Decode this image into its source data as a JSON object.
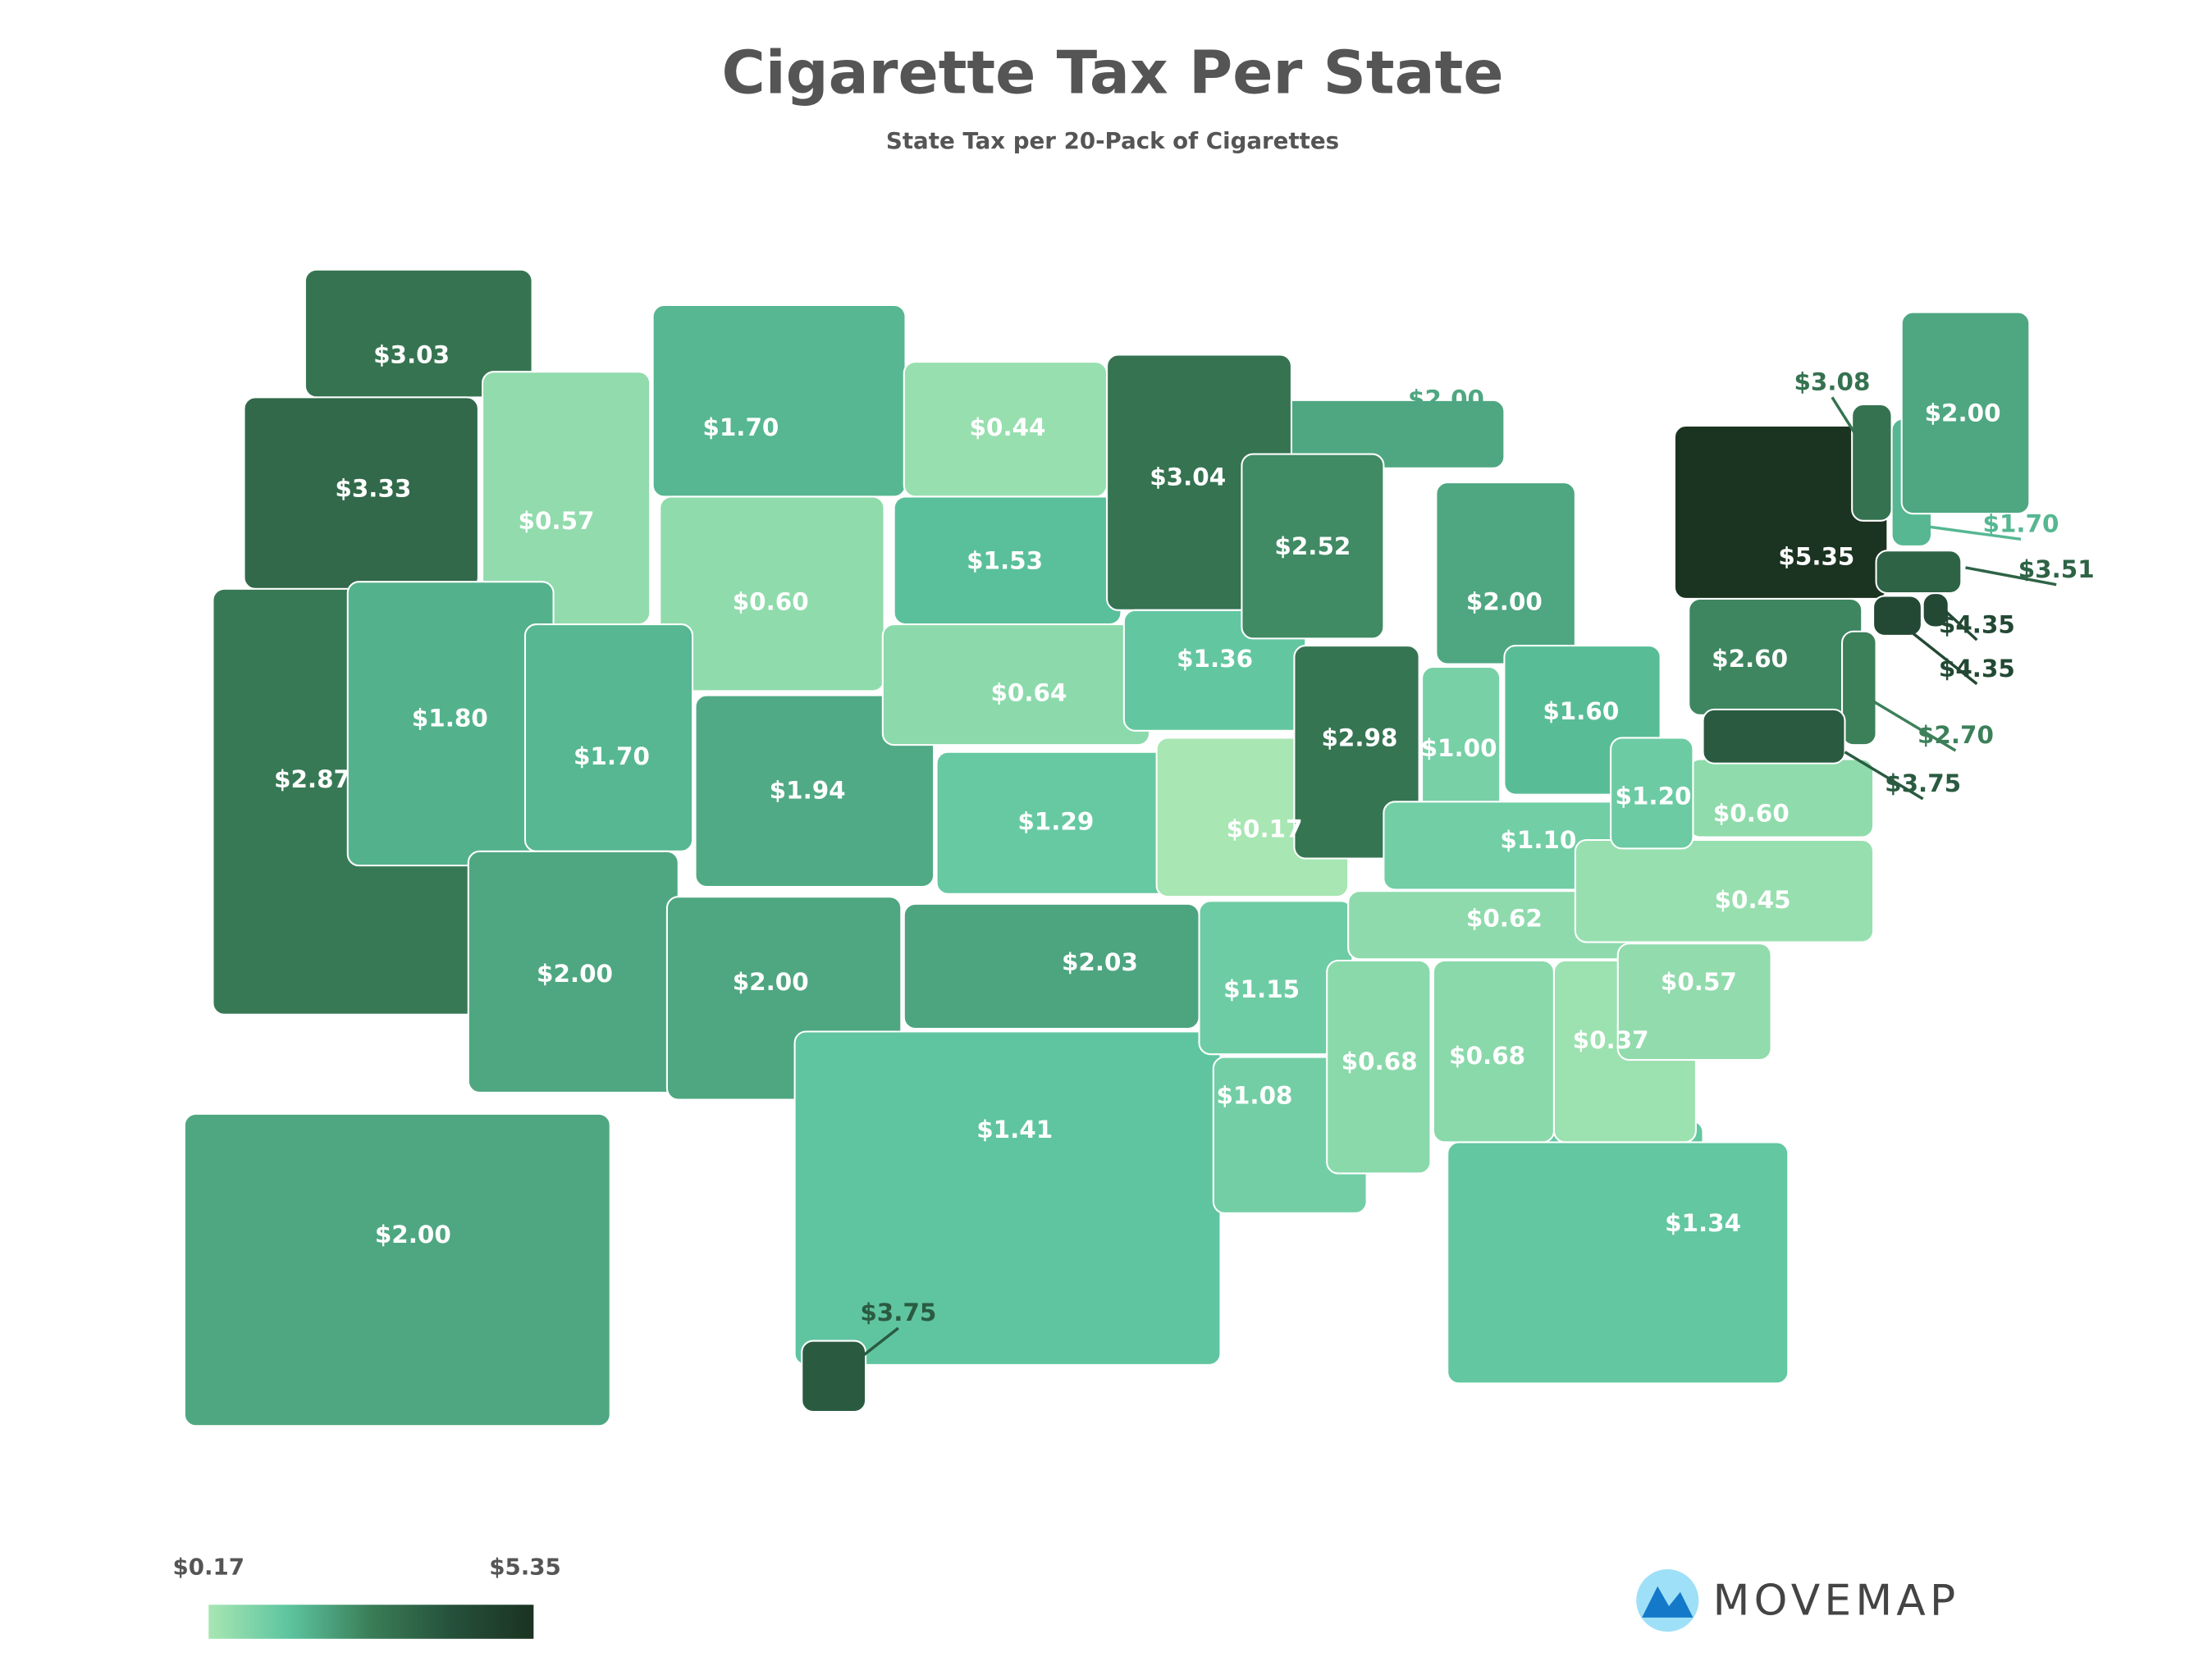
{
  "chart_data": {
    "type": "choropleth",
    "title": "Cigarette Tax Per State",
    "subtitle": "State Tax per 20-Pack of Cigarettes",
    "values": [
      3.03,
      3.33,
      2.87,
      0.57,
      1.8,
      1.7,
      0.6,
      1.7,
      2.0,
      1.94,
      2.0,
      0.44,
      1.53,
      0.64,
      1.29,
      2.03,
      1.41,
      3.04,
      1.36,
      0.17,
      1.15,
      1.08,
      2.52,
      2.98,
      2.0,
      1.0,
      1.6,
      1.1,
      0.62,
      0.68,
      0.68,
      0.37,
      1.34,
      0.57,
      0.45,
      0.6,
      1.2,
      2.6,
      5.35,
      3.08,
      1.7,
      2.0,
      3.51,
      4.35,
      4.35,
      2.7,
      3.75,
      2.0,
      3.75
    ],
    "value_labels": [
      "$3.03",
      "$3.33",
      "$2.87",
      "$0.57",
      "$1.80",
      "$1.70",
      "$0.60",
      "$1.70",
      "$2.00",
      "$1.94",
      "$2.00",
      "$0.44",
      "$1.53",
      "$0.64",
      "$1.29",
      "$2.03",
      "$1.41",
      "$3.04",
      "$1.36",
      "$0.17",
      "$1.15",
      "$1.08",
      "$2.52",
      "$2.98",
      "$2.00",
      "$1.00",
      "$1.60",
      "$1.10",
      "$0.62",
      "$0.68",
      "$0.68",
      "$0.37",
      "$1.34",
      "$0.57",
      "$0.45",
      "$0.60",
      "$1.20",
      "$2.60",
      "$5.35",
      "$3.08",
      "$1.70",
      "$2.00",
      "$3.51",
      "$4.35",
      "$4.35",
      "$2.70",
      "$3.75",
      "$2.00",
      "$3.75"
    ],
    "colorscale": [
      "#a8e6b3",
      "#5cc49f",
      "#3a7d57",
      "#25503a",
      "#1b3321"
    ],
    "legend": [
      {
        "value": 0.17,
        "label": "$0.17"
      },
      {
        "value": 5.35,
        "label": "$5.35"
      }
    ]
  },
  "logo": "MOVEMAP"
}
